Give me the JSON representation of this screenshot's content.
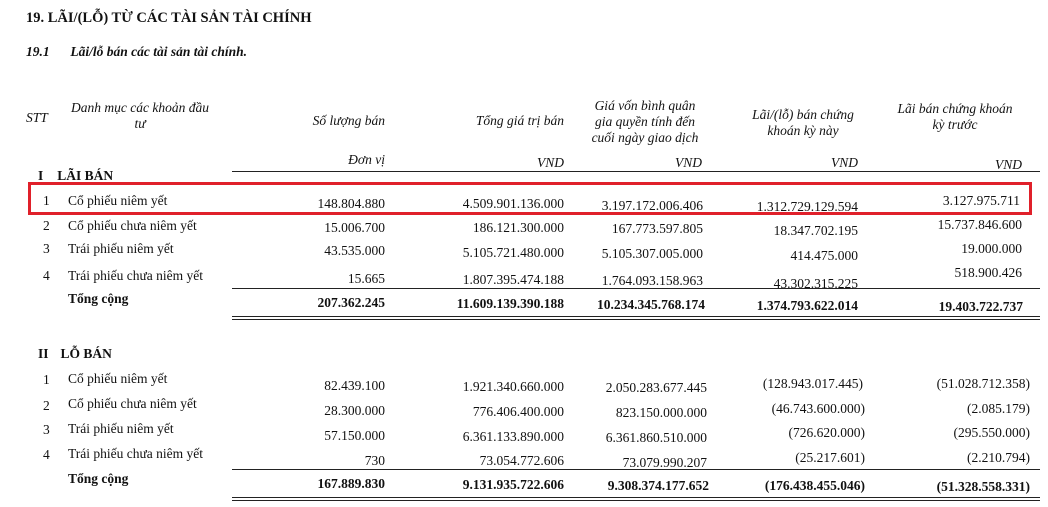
{
  "title": "19. LÃI/(LỖ) TỪ CÁC TÀI SẢN TÀI CHÍNH",
  "subtitle_num": "19.1",
  "subtitle_text": "Lãi/lỗ bán các tài sản tài chính.",
  "headers": {
    "stt": "STT",
    "category": [
      "Danh mục các khoản đầu",
      "tư"
    ],
    "qty": "Số lượng bán",
    "total": "Tổng giá trị bán",
    "cost": [
      "Giá vốn bình quân",
      "gia quyền tính đến",
      "cuối ngày giao dịch"
    ],
    "gain_now": [
      "Lãi/(lỗ) bán chứng",
      "khoán kỳ này"
    ],
    "gain_prev": [
      "Lãi bán chứng khoán",
      "kỳ trước"
    ]
  },
  "units": {
    "qty": "Đơn vị",
    "total": "VND",
    "cost": "VND",
    "gain_now": "VND",
    "gain_prev": "VND"
  },
  "section1": {
    "num": "I",
    "label": "LÃI BÁN",
    "rows": [
      {
        "stt": "1",
        "name": "Cổ phiếu  niêm yết",
        "qty": "148.804.880",
        "total": "4.509.901.136.000",
        "cost": "3.197.172.006.406",
        "gain_now": "1.312.729.129.594",
        "gain_prev": "3.127.975.711"
      },
      {
        "stt": "2",
        "name": "Cổ phiếu chưa niêm yết",
        "qty": "15.006.700",
        "total": "186.121.300.000",
        "cost": "167.773.597.805",
        "gain_now": "18.347.702.195",
        "gain_prev": "15.737.846.600"
      },
      {
        "stt": "3",
        "name": "Trái phiếu niêm yết",
        "qty": "43.535.000",
        "total": "5.105.721.480.000",
        "cost": "5.105.307.005.000",
        "gain_now": "414.475.000",
        "gain_prev": "19.000.000"
      },
      {
        "stt": "4",
        "name": "Trái phiếu chưa niêm yết",
        "qty": "15.665",
        "total": "1.807.395.474.188",
        "cost": "1.764.093.158.963",
        "gain_now": "43.302.315.225",
        "gain_prev": "518.900.426"
      }
    ],
    "total": {
      "name": "Tổng cộng",
      "qty": "207.362.245",
      "total": "11.609.139.390.188",
      "cost": "10.234.345.768.174",
      "gain_now": "1.374.793.622.014",
      "gain_prev": "19.403.722.737"
    }
  },
  "section2": {
    "num": "II",
    "label": "LỖ BÁN",
    "rows": [
      {
        "stt": "1",
        "name": "Cổ phiếu  niêm yết",
        "qty": "82.439.100",
        "total": "1.921.340.660.000",
        "cost": "2.050.283.677.445",
        "gain_now": "(128.943.017.445)",
        "gain_prev": "(51.028.712.358)"
      },
      {
        "stt": "2",
        "name": "Cổ phiếu chưa niêm yết",
        "qty": "28.300.000",
        "total": "776.406.400.000",
        "cost": "823.150.000.000",
        "gain_now": "(46.743.600.000)",
        "gain_prev": "(2.085.179)"
      },
      {
        "stt": "3",
        "name": "Trái phiếu niêm yết",
        "qty": "57.150.000",
        "total": "6.361.133.890.000",
        "cost": "6.361.860.510.000",
        "gain_now": "(726.620.000)",
        "gain_prev": "(295.550.000)"
      },
      {
        "stt": "4",
        "name": "Trái phiếu chưa niêm yết",
        "qty": "730",
        "total": "73.054.772.606",
        "cost": "73.079.990.207",
        "gain_now": "(25.217.601)",
        "gain_prev": "(2.210.794)"
      }
    ],
    "total": {
      "name": "Tổng cộng",
      "qty": "167.889.830",
      "total": "9.131.935.722.606",
      "cost": "9.308.374.177.652",
      "gain_now": "(176.438.455.046)",
      "gain_prev": "(51.328.558.331)"
    }
  }
}
